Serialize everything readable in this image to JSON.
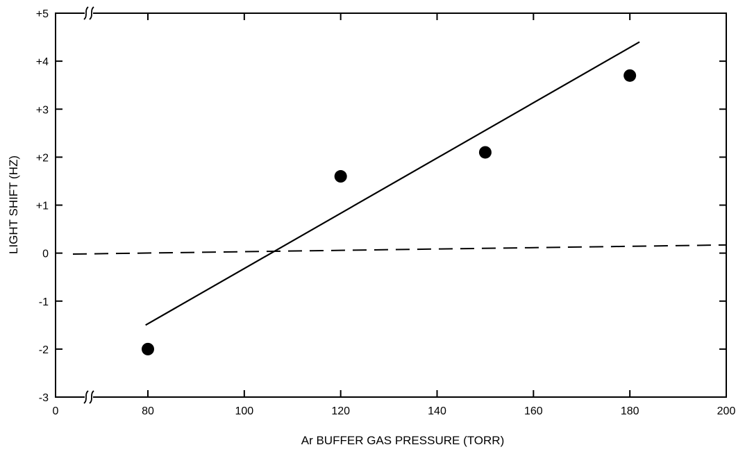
{
  "chart_data": {
    "type": "scatter",
    "xlabel": "Ar BUFFER GAS PRESSURE (TORR)",
    "ylabel": "LIGHT SHIFT (HZ)",
    "xlim": [
      0,
      200
    ],
    "ylim": [
      -3,
      5
    ],
    "x_ticks": [
      0,
      80,
      100,
      120,
      140,
      160,
      180,
      200
    ],
    "x_tick_labels": [
      "0",
      "80",
      "100",
      "120",
      "140",
      "160",
      "180",
      "200"
    ],
    "y_ticks": [
      5,
      4,
      3,
      2,
      1,
      0,
      -1,
      -2,
      -3
    ],
    "y_tick_labels": [
      "+5",
      "+4",
      "+3",
      "+2",
      "+1",
      "0",
      "-1",
      "-2",
      "-3"
    ],
    "axis_break": "between 0 and 80 on the x axis",
    "grid": false,
    "points": [
      {
        "x": 80,
        "y": -2.0
      },
      {
        "x": 120,
        "y": 1.6
      },
      {
        "x": 150,
        "y": 2.1
      },
      {
        "x": 180,
        "y": 3.7
      }
    ],
    "fit_line": {
      "x": [
        78,
        182
      ],
      "y": [
        -1.5,
        4.4
      ]
    },
    "zero_reference_line": {
      "style": "dashed",
      "x": [
        0,
        200
      ],
      "y": [
        -0.02,
        0.17
      ]
    }
  }
}
